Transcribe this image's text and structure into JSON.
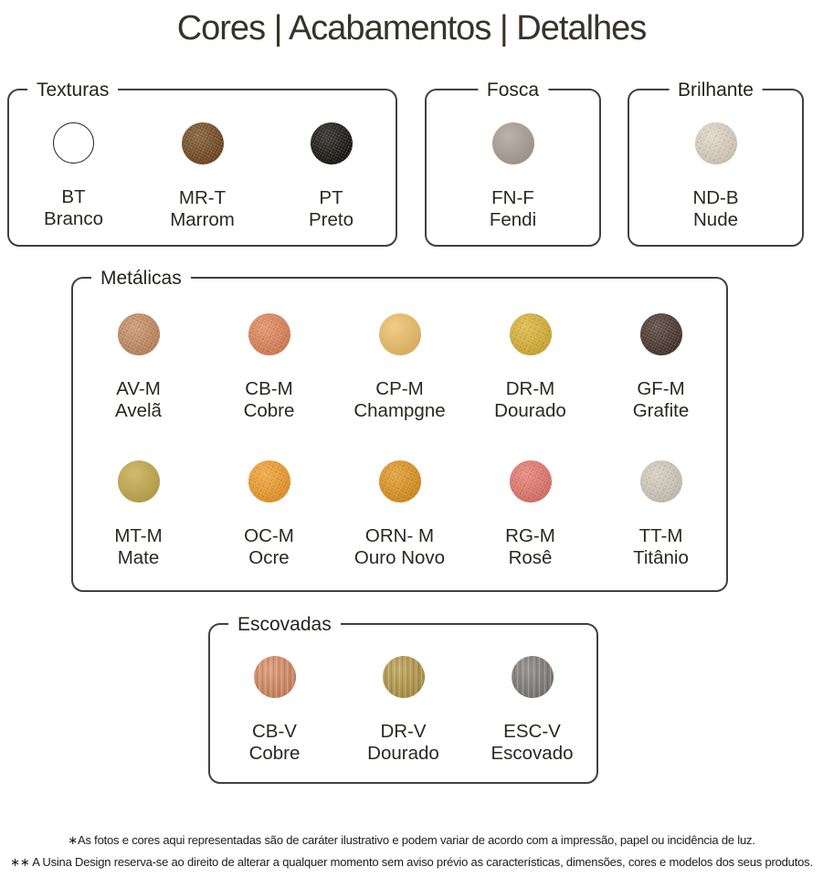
{
  "title": "Cores | Acabamentos | Detalhes",
  "groups": [
    {
      "id": "texturas",
      "label": "Texturas",
      "legend_align": "left",
      "swatches": [
        {
          "code": "BT",
          "name": "Branco",
          "color": "#ffffff",
          "texture": "plain",
          "outline": true
        },
        {
          "code": "MR-T",
          "name": "Marrom",
          "color": "#74481f",
          "texture": "speckle",
          "outline": false
        },
        {
          "code": "PT",
          "name": "Preto",
          "color": "#17120e",
          "texture": "speckle",
          "outline": false
        }
      ]
    },
    {
      "id": "fosca",
      "label": "Fosca",
      "legend_align": "center",
      "swatches": [
        {
          "code": "FN-F",
          "name": "Fendi",
          "color": "#aca196",
          "texture": "plain",
          "outline": false
        }
      ]
    },
    {
      "id": "brilhante",
      "label": "Brilhante",
      "legend_align": "center",
      "swatches": [
        {
          "code": "ND-B",
          "name": "Nude",
          "color": "#ded2c1",
          "texture": "speckle",
          "outline": false
        }
      ]
    },
    {
      "id": "metalicas",
      "label": "Metálicas",
      "legend_align": "left",
      "swatches": [
        {
          "code": "AV-M",
          "name": "Avelã",
          "color": "#c58a5f",
          "texture": "speckle",
          "outline": false
        },
        {
          "code": "CB-M",
          "name": "Cobre",
          "color": "#e08256",
          "texture": "speckle",
          "outline": false
        },
        {
          "code": "CP-M",
          "name": "Champgne",
          "color": "#edc06a",
          "texture": "plain",
          "outline": false
        },
        {
          "code": "DR-M",
          "name": "Dourado",
          "color": "#d9b132",
          "texture": "speckle",
          "outline": false
        },
        {
          "code": "GF-M",
          "name": "Grafite",
          "color": "#46332a",
          "texture": "speckle",
          "outline": false
        },
        {
          "code": "MT-M",
          "name": "Mate",
          "color": "#c4ab4f",
          "texture": "plain",
          "outline": false
        },
        {
          "code": "OC-M",
          "name": "Ocre",
          "color": "#f09b28",
          "texture": "speckle",
          "outline": false
        },
        {
          "code": "ORN- M",
          "name": "Ouro Novo",
          "color": "#e0921d",
          "texture": "speckle",
          "outline": false
        },
        {
          "code": "RG-M",
          "name": "Rosê",
          "color": "#e4756a",
          "texture": "speckle",
          "outline": false
        },
        {
          "code": "TT-M",
          "name": "Titânio",
          "color": "#d2cabc",
          "texture": "speckle",
          "outline": false
        }
      ]
    },
    {
      "id": "escovadas",
      "label": "Escovadas",
      "legend_align": "left",
      "swatches": [
        {
          "code": "CB-V",
          "name": "Cobre",
          "color": "#d88d64",
          "texture": "brush",
          "outline": false
        },
        {
          "code": "DR-V",
          "name": "Dourado",
          "color": "#b79a4c",
          "texture": "brush",
          "outline": false
        },
        {
          "code": "ESC-V",
          "name": "Escovado",
          "color": "#84807c",
          "texture": "brush",
          "outline": false
        }
      ]
    }
  ],
  "footnotes": [
    "∗As fotos e cores aqui representadas são de caráter ilustrativo e podem variar de acordo com a impressão, papel ou incidência de luz.",
    "∗∗ A Usina Design reserva-se ao direito de alterar a qualquer momento sem aviso prévio as características, dimensões, cores e modelos dos seus produtos."
  ]
}
